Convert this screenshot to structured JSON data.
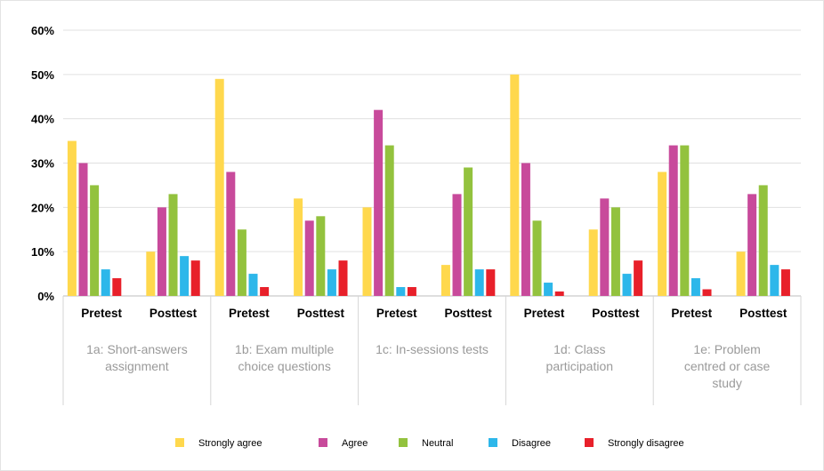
{
  "chart_data": {
    "type": "bar",
    "ylim": [
      0,
      60
    ],
    "yticks": [
      "0%",
      "10%",
      "20%",
      "30%",
      "40%",
      "50%",
      "60%"
    ],
    "grid": true,
    "legend_position": "bottom",
    "groups": [
      {
        "label": "1a: Short-answers assignment",
        "lines": [
          "1a: Short-answers",
          "assignment"
        ]
      },
      {
        "label": "1b: Exam multiple choice questions",
        "lines": [
          "1b: Exam multiple",
          "choice questions"
        ]
      },
      {
        "label": "1c: In-sessions tests",
        "lines": [
          "1c: In-sessions tests"
        ]
      },
      {
        "label": "1d: Class participation",
        "lines": [
          "1d: Class",
          "participation"
        ]
      },
      {
        "label": "1e: Problem centred or case study",
        "lines": [
          "1e: Problem",
          "centred or case",
          "study"
        ]
      }
    ],
    "subcategories": [
      "Pretest",
      "Posttest"
    ],
    "categories": [
      "1a Pretest",
      "1a Posttest",
      "1b Pretest",
      "1b Posttest",
      "1c Pretest",
      "1c Posttest",
      "1d Pretest",
      "1d Posttest",
      "1e Pretest",
      "1e Posttest"
    ],
    "series": [
      {
        "name": "Strongly agree",
        "color": "#FFD84D",
        "values": [
          35,
          10,
          49,
          22,
          20,
          7,
          50,
          15,
          28,
          10
        ]
      },
      {
        "name": "Agree",
        "color": "#C84A9B",
        "values": [
          30,
          20,
          28,
          17,
          42,
          23,
          30,
          22,
          34,
          23
        ]
      },
      {
        "name": "Neutral",
        "color": "#93C23E",
        "values": [
          25,
          23,
          15,
          18,
          34,
          29,
          17,
          20,
          34,
          25
        ]
      },
      {
        "name": "Disagree",
        "color": "#2DB7EA",
        "values": [
          6,
          9,
          5,
          6,
          2,
          6,
          3,
          5,
          4,
          7
        ]
      },
      {
        "name": "Strongly disagree",
        "color": "#E8202A",
        "values": [
          4,
          8,
          2,
          8,
          2,
          6,
          1,
          8,
          1.5,
          6
        ]
      }
    ]
  }
}
